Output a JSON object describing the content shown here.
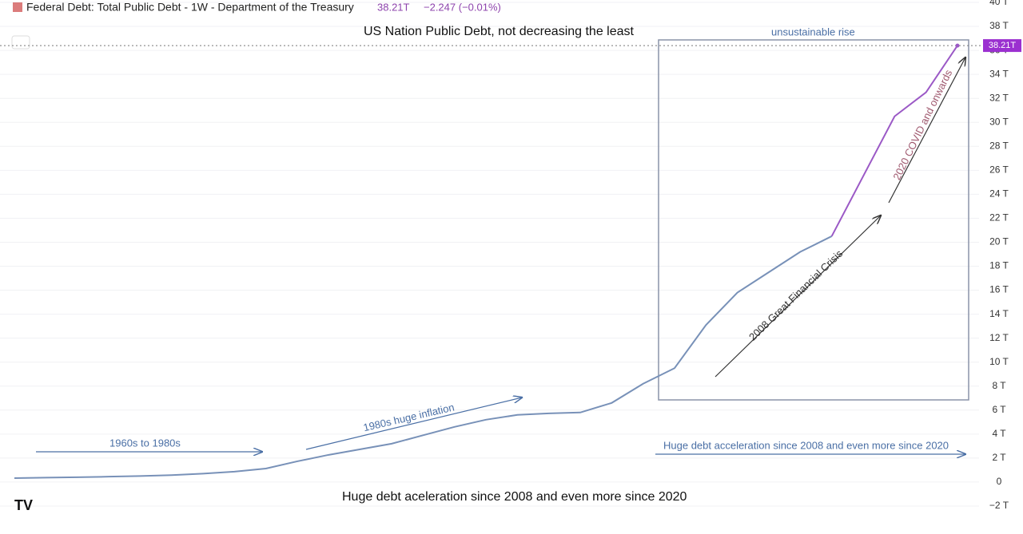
{
  "chart_data": {
    "type": "line",
    "title": "Federal Debt: Total Public Debt - 1W - Department of the Treasury",
    "last_price": "38.21T",
    "change": "−2.247 (−0.01%)",
    "subtitle": "US Nation Public Debt, not decreasing the least",
    "caption": "Huge debt aceleration since 2008 and even more since 2020",
    "annotations": [
      "unsustainable rise",
      "1960s to 1980s",
      "1980s huge inflation",
      "Huge debt acceleration since 2008 and even more since 2020",
      "2008 Great Financial Crisis",
      "2020 COVID and onwards"
    ],
    "categories": [
      null,
      null,
      null,
      null,
      null,
      null,
      null,
      null,
      null,
      null,
      null,
      null,
      null,
      null,
      null,
      null,
      null,
      null,
      null,
      null,
      null,
      null,
      null,
      null,
      null,
      null,
      null,
      null,
      null,
      null,
      null
    ],
    "series": [
      {
        "color": "#7891b8",
        "values": [
          0.33,
          0.37,
          0.4,
          0.45,
          0.5,
          0.58,
          0.7,
          0.87,
          1.13,
          1.73,
          2.27,
          2.73,
          3.2,
          3.9,
          4.6,
          5.2,
          5.6,
          5.73,
          5.8,
          6.6,
          8.2,
          9.5,
          13.1,
          15.8,
          17.5,
          19.2,
          20.5,
          null,
          null,
          null,
          null
        ]
      },
      {
        "color": "#9b59c6",
        "values": [
          null,
          null,
          null,
          null,
          null,
          null,
          null,
          null,
          null,
          null,
          null,
          null,
          null,
          null,
          null,
          null,
          null,
          null,
          null,
          null,
          null,
          null,
          null,
          null,
          null,
          null,
          20.5,
          25.5,
          30.5,
          32.5,
          36.4
        ]
      }
    ],
    "ylim": [
      -3,
      40.2
    ],
    "yticks": [
      {
        "value": -2,
        "label": "−2 T"
      },
      0,
      {
        "value": 2,
        "label": "2 T"
      },
      {
        "value": 4,
        "label": "4 T"
      },
      {
        "value": 6,
        "label": "6 T"
      },
      {
        "value": 8,
        "label": "8 T"
      },
      {
        "value": 10,
        "label": "10 T"
      },
      {
        "value": 12,
        "label": "12 T"
      },
      {
        "value": 14,
        "label": "14 T"
      },
      {
        "value": 16,
        "label": "16 T"
      },
      {
        "value": 18,
        "label": "18 T"
      },
      {
        "value": 20,
        "label": "20 T"
      },
      {
        "value": 22,
        "label": "22 T"
      },
      {
        "value": 24,
        "label": "24 T"
      },
      {
        "value": 26,
        "label": "26 T"
      },
      {
        "value": 28,
        "label": "28 T"
      },
      {
        "value": 30,
        "label": "30 T"
      },
      {
        "value": 32,
        "label": "32 T"
      },
      {
        "value": 34,
        "label": "34 T"
      },
      {
        "value": 36,
        "label": "36 T"
      },
      {
        "value": 38,
        "label": "38 T"
      },
      {
        "value": 40,
        "label": "40 T"
      }
    ],
    "grid": true
  }
}
